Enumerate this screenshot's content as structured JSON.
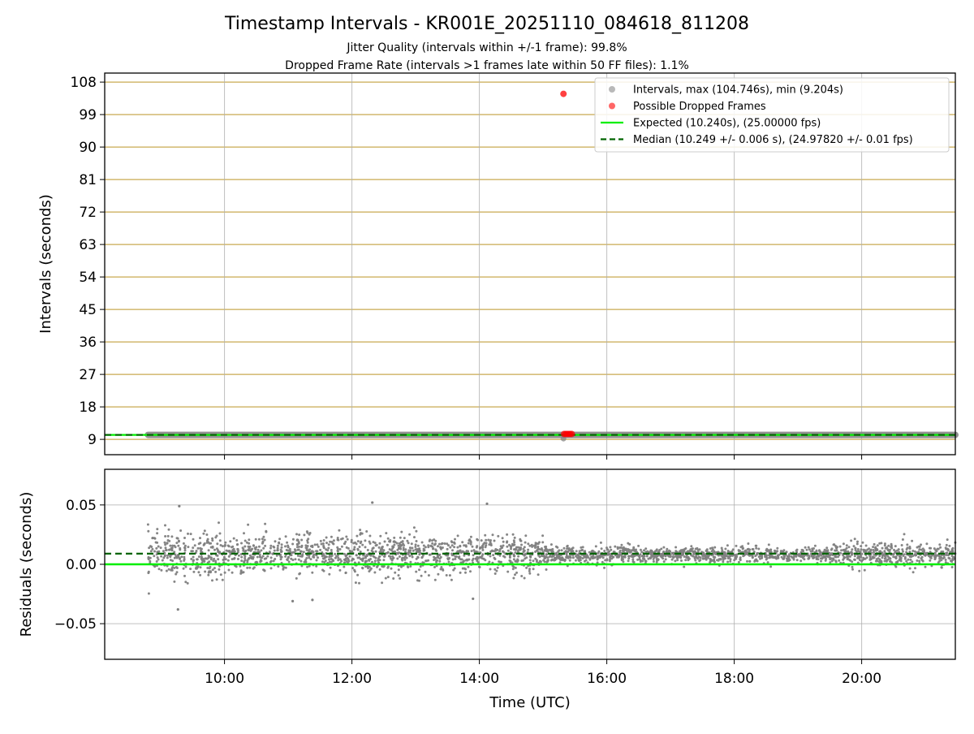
{
  "chart_data": {
    "title": "Timestamp Intervals - KR001E_20251110_084618_811208",
    "subtitle_lines": [
      "Jitter Quality (intervals within +/-1 frame): 99.8%",
      "Dropped Frame Rate (intervals >1 frames late within 50 FF files): 1.1%"
    ],
    "xlabel": "Time (UTC)",
    "x_range_hours": [
      8.12,
      21.47
    ],
    "x_ticks": [
      {
        "value": 10,
        "label": "10:00"
      },
      {
        "value": 12,
        "label": "12:00"
      },
      {
        "value": 14,
        "label": "14:00"
      },
      {
        "value": 16,
        "label": "16:00"
      },
      {
        "value": 18,
        "label": "18:00"
      },
      {
        "value": 20,
        "label": "20:00"
      }
    ],
    "colors": {
      "intervals": "#808080",
      "dropped": "#ff0000",
      "expected": "#00ee00",
      "median": "#006400",
      "y_grid": "#c8aa50",
      "x_grid": "#b0b0b0"
    },
    "top": {
      "type": "scatter",
      "ylabel": "Intervals (seconds)",
      "ylim": [
        4.75,
        110.5
      ],
      "yticks": [
        9,
        18,
        27,
        36,
        45,
        54,
        63,
        72,
        81,
        90,
        99,
        108
      ],
      "x_start_hours": 8.8,
      "x_end_hours": 21.47,
      "expected_value": 10.24,
      "median_value": 10.249,
      "baseline_value": 10.24,
      "min_point": {
        "x": 15.32,
        "y": 9.204
      },
      "dropped_points": [
        {
          "x": 15.32,
          "y": 104.746
        },
        {
          "x": 15.33,
          "y": 10.5
        },
        {
          "x": 15.36,
          "y": 10.5
        },
        {
          "x": 15.39,
          "y": 10.5
        },
        {
          "x": 15.42,
          "y": 10.5
        },
        {
          "x": 15.45,
          "y": 10.5
        }
      ],
      "legend_location": "upper right",
      "legend": [
        {
          "kind": "dot",
          "color_key": "intervals",
          "label": "Intervals, max (104.746s), min (9.204s)"
        },
        {
          "kind": "dot",
          "color_key": "dropped",
          "label": "Possible Dropped Frames"
        },
        {
          "kind": "line",
          "color_key": "expected",
          "label": "Expected (10.240s), (25.00000 fps)"
        },
        {
          "kind": "dash",
          "color_key": "median",
          "label": "Median (10.249 +/- 0.006 s), (24.97820 +/- 0.01 fps)"
        }
      ]
    },
    "bottom": {
      "type": "scatter",
      "ylabel": "Residuals (seconds)",
      "ylim": [
        -0.08,
        0.08
      ],
      "yticks": [
        {
          "value": 0.05,
          "label": "0.05"
        },
        {
          "value": 0.0,
          "label": "0.00"
        },
        {
          "value": -0.05,
          "label": "−0.05"
        }
      ],
      "expected_value": 0.0,
      "median_value": 0.009,
      "residual_center": 0.008,
      "noise_segments": [
        {
          "start": 8.8,
          "end": 10.0,
          "spread": 0.0125
        },
        {
          "start": 10.0,
          "end": 13.5,
          "spread": 0.011
        },
        {
          "start": 13.5,
          "end": 15.0,
          "spread": 0.01
        },
        {
          "start": 15.0,
          "end": 16.5,
          "spread": 0.005
        },
        {
          "start": 16.5,
          "end": 19.5,
          "spread": 0.004
        },
        {
          "start": 19.5,
          "end": 21.47,
          "spread": 0.0065
        }
      ],
      "outliers": [
        {
          "x": 9.29,
          "y": 0.049
        },
        {
          "x": 12.32,
          "y": 0.052
        },
        {
          "x": 14.12,
          "y": 0.051
        },
        {
          "x": 9.27,
          "y": -0.038
        },
        {
          "x": 13.9,
          "y": -0.029
        },
        {
          "x": 11.07,
          "y": -0.031
        },
        {
          "x": 11.38,
          "y": -0.03
        }
      ]
    }
  }
}
